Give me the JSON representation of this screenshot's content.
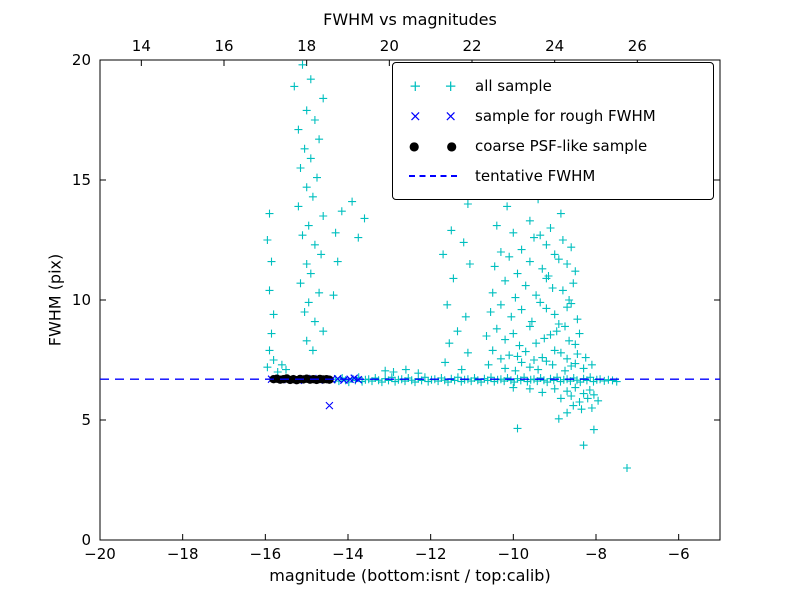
{
  "chart_data": {
    "type": "scatter",
    "title": "FWHM vs magnitudes",
    "xlabel": "magnitude (bottom:isnt / top:calib)",
    "ylabel": "FWHM (pix)",
    "xlim": [
      -20,
      -5
    ],
    "ylim": [
      0,
      20
    ],
    "x_ticks_bottom": [
      -20,
      -18,
      -16,
      -14,
      -12,
      -10,
      -8,
      -6
    ],
    "x_ticks_top": {
      "values": [
        14,
        16,
        18,
        20,
        22,
        24,
        26
      ],
      "offset_to_isnt": -33
    },
    "y_ticks": [
      0,
      5,
      10,
      15,
      20
    ],
    "grid": false,
    "legend_position": "upper right",
    "frame_color": "#000000",
    "tentative_fwhm": 6.7,
    "series": [
      {
        "name": "all sample",
        "marker": "plus",
        "legend_glyph": "+",
        "color": "#00bfbf",
        "points": [
          [
            -15.1,
            19.8
          ],
          [
            -14.9,
            19.2
          ],
          [
            -15.3,
            18.9
          ],
          [
            -14.6,
            18.4
          ],
          [
            -15.0,
            17.9
          ],
          [
            -14.8,
            17.5
          ],
          [
            -15.2,
            17.1
          ],
          [
            -14.7,
            16.7
          ],
          [
            -15.05,
            16.3
          ],
          [
            -14.9,
            15.9
          ],
          [
            -15.15,
            15.5
          ],
          [
            -14.75,
            15.1
          ],
          [
            -15.0,
            14.7
          ],
          [
            -14.85,
            14.3
          ],
          [
            -15.2,
            13.9
          ],
          [
            -14.6,
            13.5
          ],
          [
            -14.95,
            13.1
          ],
          [
            -15.1,
            12.7
          ],
          [
            -14.8,
            12.3
          ],
          [
            -14.65,
            11.9
          ],
          [
            -15.0,
            11.5
          ],
          [
            -14.9,
            11.1
          ],
          [
            -15.15,
            10.7
          ],
          [
            -14.7,
            10.3
          ],
          [
            -14.95,
            9.9
          ],
          [
            -15.05,
            9.5
          ],
          [
            -14.8,
            9.1
          ],
          [
            -14.6,
            8.7
          ],
          [
            -15.0,
            8.3
          ],
          [
            -14.85,
            7.9
          ],
          [
            -14.15,
            13.7
          ],
          [
            -14.3,
            12.8
          ],
          [
            -14.25,
            11.6
          ],
          [
            -14.35,
            10.2
          ],
          [
            -15.9,
            13.6
          ],
          [
            -15.95,
            12.5
          ],
          [
            -15.85,
            11.6
          ],
          [
            -15.9,
            10.4
          ],
          [
            -15.8,
            9.4
          ],
          [
            -15.85,
            8.6
          ],
          [
            -15.9,
            7.9
          ],
          [
            -15.8,
            7.5
          ],
          [
            -15.95,
            7.2
          ],
          [
            -15.7,
            7.0
          ],
          [
            -15.6,
            7.3
          ],
          [
            -15.5,
            7.1
          ],
          [
            -13.9,
            14.1
          ],
          [
            -13.6,
            13.4
          ],
          [
            -13.75,
            12.6
          ],
          [
            -11.5,
            12.9
          ],
          [
            -11.2,
            12.4
          ],
          [
            -11.7,
            11.9
          ],
          [
            -11.05,
            11.5
          ],
          [
            -11.45,
            10.9
          ],
          [
            -11.6,
            9.8
          ],
          [
            -11.15,
            9.3
          ],
          [
            -11.35,
            8.7
          ],
          [
            -11.55,
            8.2
          ],
          [
            -11.1,
            7.8
          ],
          [
            -11.65,
            7.4
          ],
          [
            -11.25,
            7.1
          ],
          [
            -11.1,
            14.0
          ],
          [
            -9.9,
            14.5
          ],
          [
            -9.4,
            14.2
          ],
          [
            -10.15,
            13.9
          ],
          [
            -8.85,
            13.6
          ],
          [
            -9.6,
            13.3
          ],
          [
            -10.4,
            13.1
          ],
          [
            -9.1,
            13.0
          ],
          [
            -10.0,
            12.8
          ],
          [
            -9.5,
            12.6
          ],
          [
            -8.8,
            12.5
          ],
          [
            -9.2,
            12.3
          ],
          [
            -9.8,
            12.1
          ],
          [
            -10.3,
            12.0
          ],
          [
            -8.6,
            12.2
          ],
          [
            -9.35,
            12.7
          ],
          [
            -10.1,
            11.8
          ],
          [
            -9.6,
            11.6
          ],
          [
            -9.0,
            11.9
          ],
          [
            -8.7,
            11.5
          ],
          [
            -9.3,
            11.3
          ],
          [
            -9.9,
            11.1
          ],
          [
            -8.5,
            11.2
          ],
          [
            -10.45,
            11.4
          ],
          [
            -9.15,
            11.0
          ],
          [
            -8.9,
            11.7
          ],
          [
            -10.2,
            10.8
          ],
          [
            -9.7,
            10.6
          ],
          [
            -9.2,
            10.9
          ],
          [
            -8.8,
            10.4
          ],
          [
            -8.55,
            10.7
          ],
          [
            -9.45,
            10.2
          ],
          [
            -9.95,
            10.1
          ],
          [
            -10.5,
            10.3
          ],
          [
            -9.05,
            10.5
          ],
          [
            -8.65,
            10.0
          ],
          [
            -10.3,
            9.8
          ],
          [
            -9.8,
            9.6
          ],
          [
            -9.35,
            9.9
          ],
          [
            -9.0,
            9.4
          ],
          [
            -8.7,
            9.7
          ],
          [
            -8.45,
            9.2
          ],
          [
            -9.55,
            9.1
          ],
          [
            -10.05,
            9.3
          ],
          [
            -10.55,
            9.5
          ],
          [
            -8.9,
            9.0
          ],
          [
            -9.2,
            9.65
          ],
          [
            -8.6,
            9.85
          ],
          [
            -10.4,
            8.8
          ],
          [
            -10.0,
            8.6
          ],
          [
            -9.6,
            8.9
          ],
          [
            -9.25,
            8.4
          ],
          [
            -8.95,
            8.7
          ],
          [
            -8.65,
            8.3
          ],
          [
            -8.4,
            8.6
          ],
          [
            -9.45,
            8.2
          ],
          [
            -9.85,
            8.1
          ],
          [
            -10.2,
            8.35
          ],
          [
            -8.75,
            8.9
          ],
          [
            -9.1,
            8.55
          ],
          [
            -8.5,
            8.15
          ],
          [
            -10.65,
            8.5
          ],
          [
            -10.5,
            7.9
          ],
          [
            -10.1,
            7.7
          ],
          [
            -9.7,
            7.85
          ],
          [
            -9.3,
            7.6
          ],
          [
            -9.0,
            7.9
          ],
          [
            -8.7,
            7.55
          ],
          [
            -8.45,
            7.75
          ],
          [
            -8.25,
            7.6
          ],
          [
            -9.5,
            7.5
          ],
          [
            -9.9,
            7.65
          ],
          [
            -8.85,
            7.8
          ],
          [
            -10.3,
            7.55
          ],
          [
            -10.6,
            7.3
          ],
          [
            -10.2,
            7.15
          ],
          [
            -9.8,
            7.4
          ],
          [
            -9.4,
            7.1
          ],
          [
            -9.05,
            7.3
          ],
          [
            -8.75,
            7.05
          ],
          [
            -8.5,
            7.35
          ],
          [
            -8.3,
            7.15
          ],
          [
            -8.1,
            7.3
          ],
          [
            -9.6,
            7.2
          ],
          [
            -9.95,
            7.05
          ],
          [
            -9.2,
            7.45
          ],
          [
            -8.6,
            7.25
          ],
          [
            -9.0,
            6.3
          ],
          [
            -8.7,
            6.2
          ],
          [
            -8.5,
            6.35
          ],
          [
            -8.3,
            6.1
          ],
          [
            -8.15,
            6.25
          ],
          [
            -8.6,
            6.0
          ],
          [
            -8.85,
            5.9
          ],
          [
            -8.4,
            5.75
          ],
          [
            -8.2,
            5.9
          ],
          [
            -8.05,
            6.05
          ],
          [
            -8.55,
            5.6
          ],
          [
            -8.35,
            5.45
          ],
          [
            -8.7,
            5.3
          ],
          [
            -8.1,
            5.5
          ],
          [
            -7.95,
            5.8
          ],
          [
            -9.3,
            6.15
          ],
          [
            -9.6,
            6.3
          ],
          [
            -10.0,
            6.35
          ],
          [
            -8.9,
            5.05
          ],
          [
            -9.9,
            4.65
          ],
          [
            -8.3,
            3.95
          ],
          [
            -7.25,
            3.0
          ],
          [
            -8.05,
            4.6
          ],
          [
            -12.9,
            7.0
          ],
          [
            -12.3,
            6.95
          ],
          [
            -13.1,
            7.05
          ],
          [
            -12.6,
            7.1
          ],
          [
            -14.3,
            6.7
          ],
          [
            -14.22,
            6.62
          ],
          [
            -14.14,
            6.75
          ],
          [
            -14.06,
            6.66
          ],
          [
            -13.98,
            6.58
          ],
          [
            -13.9,
            6.72
          ],
          [
            -13.82,
            6.65
          ],
          [
            -13.74,
            6.78
          ],
          [
            -13.66,
            6.6
          ],
          [
            -13.58,
            6.68
          ],
          [
            -13.5,
            6.7
          ],
          [
            -13.42,
            6.62
          ],
          [
            -13.34,
            6.75
          ],
          [
            -13.26,
            6.66
          ],
          [
            -13.18,
            6.58
          ],
          [
            -13.1,
            6.72
          ],
          [
            -13.02,
            6.65
          ],
          [
            -12.94,
            6.78
          ],
          [
            -12.86,
            6.6
          ],
          [
            -12.78,
            6.68
          ],
          [
            -12.7,
            6.7
          ],
          [
            -12.62,
            6.62
          ],
          [
            -12.54,
            6.75
          ],
          [
            -12.46,
            6.66
          ],
          [
            -12.38,
            6.58
          ],
          [
            -12.3,
            6.72
          ],
          [
            -12.22,
            6.65
          ],
          [
            -12.14,
            6.78
          ],
          [
            -12.06,
            6.6
          ],
          [
            -11.98,
            6.68
          ],
          [
            -11.9,
            6.7
          ],
          [
            -11.82,
            6.62
          ],
          [
            -11.74,
            6.75
          ],
          [
            -11.66,
            6.66
          ],
          [
            -11.58,
            6.58
          ],
          [
            -11.5,
            6.72
          ],
          [
            -11.42,
            6.65
          ],
          [
            -11.34,
            6.78
          ],
          [
            -11.26,
            6.6
          ],
          [
            -11.18,
            6.68
          ],
          [
            -11.1,
            6.7
          ],
          [
            -11.02,
            6.62
          ],
          [
            -10.94,
            6.75
          ],
          [
            -10.86,
            6.66
          ],
          [
            -10.78,
            6.58
          ],
          [
            -10.7,
            6.72
          ],
          [
            -10.62,
            6.65
          ],
          [
            -10.54,
            6.78
          ],
          [
            -10.46,
            6.6
          ],
          [
            -10.38,
            6.68
          ],
          [
            -10.3,
            6.7
          ],
          [
            -10.22,
            6.62
          ],
          [
            -10.14,
            6.75
          ],
          [
            -10.06,
            6.66
          ],
          [
            -9.98,
            6.58
          ],
          [
            -9.9,
            6.72
          ],
          [
            -9.82,
            6.65
          ],
          [
            -9.74,
            6.78
          ],
          [
            -9.66,
            6.6
          ],
          [
            -9.58,
            6.68
          ],
          [
            -9.5,
            6.7
          ],
          [
            -9.42,
            6.62
          ],
          [
            -9.34,
            6.75
          ],
          [
            -9.26,
            6.66
          ],
          [
            -9.18,
            6.58
          ],
          [
            -9.1,
            6.72
          ],
          [
            -9.02,
            6.65
          ],
          [
            -8.94,
            6.78
          ],
          [
            -8.86,
            6.6
          ],
          [
            -8.78,
            6.68
          ],
          [
            -8.7,
            6.7
          ],
          [
            -8.62,
            6.62
          ],
          [
            -8.54,
            6.75
          ],
          [
            -8.46,
            6.66
          ],
          [
            -8.38,
            6.58
          ],
          [
            -8.3,
            6.72
          ],
          [
            -8.22,
            6.65
          ],
          [
            -8.14,
            6.78
          ],
          [
            -8.06,
            6.6
          ],
          [
            -7.98,
            6.68
          ],
          [
            -7.9,
            6.7
          ],
          [
            -7.8,
            6.63
          ],
          [
            -7.7,
            6.68
          ],
          [
            -7.6,
            6.65
          ],
          [
            -7.5,
            6.6
          ]
        ]
      },
      {
        "name": "sample for rough FWHM",
        "marker": "x",
        "legend_glyph": "×",
        "color": "#0000ff",
        "points": [
          [
            -15.85,
            6.7
          ],
          [
            -15.6,
            6.68
          ],
          [
            -15.4,
            6.72
          ],
          [
            -15.2,
            6.65
          ],
          [
            -15.0,
            6.7
          ],
          [
            -14.85,
            6.73
          ],
          [
            -14.7,
            6.66
          ],
          [
            -14.55,
            6.7
          ],
          [
            -14.4,
            6.68
          ],
          [
            -14.25,
            6.72
          ],
          [
            -14.1,
            6.66
          ],
          [
            -13.95,
            6.7
          ],
          [
            -13.85,
            6.74
          ],
          [
            -13.75,
            6.68
          ],
          [
            -14.45,
            5.6
          ]
        ]
      },
      {
        "name": "coarse PSF-like sample",
        "marker": "circle",
        "legend_glyph": "●",
        "color": "#000000",
        "points": [
          [
            -15.8,
            6.7
          ],
          [
            -15.72,
            6.72
          ],
          [
            -15.64,
            6.68
          ],
          [
            -15.56,
            6.7
          ],
          [
            -15.48,
            6.73
          ],
          [
            -15.4,
            6.67
          ],
          [
            -15.32,
            6.7
          ],
          [
            -15.24,
            6.66
          ],
          [
            -15.16,
            6.71
          ],
          [
            -15.08,
            6.69
          ],
          [
            -15.0,
            6.72
          ],
          [
            -14.92,
            6.68
          ],
          [
            -14.84,
            6.7
          ],
          [
            -14.76,
            6.67
          ],
          [
            -14.68,
            6.71
          ],
          [
            -14.6,
            6.69
          ],
          [
            -14.52,
            6.7
          ],
          [
            -14.45,
            6.68
          ]
        ]
      },
      {
        "name": "tentative FWHM",
        "marker": "dashed-line",
        "legend_glyph": "",
        "color": "#0000ff",
        "y": 6.7
      }
    ]
  }
}
